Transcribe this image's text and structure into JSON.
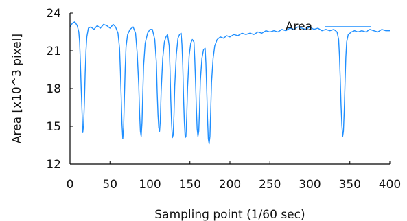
{
  "chart_data": {
    "type": "line",
    "title": "",
    "xlabel": "Sampling point (1/60 sec)",
    "ylabel": "Area [x10^3 pixel]",
    "xlim": [
      0,
      400
    ],
    "ylim": [
      12,
      24
    ],
    "x_ticks": [
      0,
      50,
      100,
      150,
      200,
      250,
      300,
      350,
      400
    ],
    "y_ticks": [
      12,
      15,
      18,
      21,
      24
    ],
    "grid": false,
    "legend": {
      "placement": "top-right"
    },
    "series": [
      {
        "name": "Area",
        "color": "#1f8fff",
        "points": [
          [
            0,
            22.9
          ],
          [
            3,
            23.2
          ],
          [
            6,
            23.3
          ],
          [
            9,
            23.0
          ],
          [
            11,
            22.5
          ],
          [
            12,
            21.7
          ],
          [
            13,
            20.1
          ],
          [
            14,
            18.0
          ],
          [
            15,
            16.2
          ],
          [
            16,
            14.5
          ],
          [
            17,
            15.1
          ],
          [
            18,
            16.9
          ],
          [
            19,
            19.2
          ],
          [
            20,
            21.0
          ],
          [
            21,
            22.1
          ],
          [
            23,
            22.8
          ],
          [
            26,
            22.9
          ],
          [
            30,
            22.7
          ],
          [
            34,
            23.0
          ],
          [
            38,
            22.8
          ],
          [
            42,
            23.1
          ],
          [
            46,
            23.0
          ],
          [
            50,
            22.8
          ],
          [
            54,
            23.1
          ],
          [
            57,
            22.9
          ],
          [
            60,
            22.4
          ],
          [
            62,
            21.2
          ],
          [
            63,
            19.4
          ],
          [
            64,
            17.3
          ],
          [
            65,
            15.2
          ],
          [
            66,
            14.0
          ],
          [
            67,
            14.9
          ],
          [
            68,
            17.2
          ],
          [
            69,
            19.6
          ],
          [
            70,
            21.3
          ],
          [
            72,
            22.3
          ],
          [
            75,
            22.7
          ],
          [
            79,
            22.9
          ],
          [
            82,
            22.4
          ],
          [
            84,
            20.8
          ],
          [
            86,
            18.2
          ],
          [
            87,
            16.0
          ],
          [
            88,
            14.6
          ],
          [
            89,
            14.2
          ],
          [
            90,
            15.3
          ],
          [
            91,
            17.5
          ],
          [
            92,
            19.8
          ],
          [
            94,
            21.6
          ],
          [
            97,
            22.4
          ],
          [
            100,
            22.7
          ],
          [
            103,
            22.7
          ],
          [
            106,
            21.9
          ],
          [
            108,
            20.1
          ],
          [
            109,
            17.7
          ],
          [
            110,
            15.9
          ],
          [
            111,
            14.9
          ],
          [
            112,
            14.6
          ],
          [
            113,
            15.5
          ],
          [
            114,
            17.8
          ],
          [
            116,
            20.4
          ],
          [
            118,
            21.7
          ],
          [
            120,
            22.1
          ],
          [
            122,
            22.3
          ],
          [
            124,
            21.4
          ],
          [
            125,
            19.7
          ],
          [
            126,
            17.1
          ],
          [
            127,
            15.2
          ],
          [
            128,
            14.1
          ],
          [
            129,
            14.3
          ],
          [
            130,
            15.9
          ],
          [
            131,
            18.2
          ],
          [
            133,
            20.7
          ],
          [
            135,
            22.0
          ],
          [
            137,
            22.3
          ],
          [
            139,
            22.4
          ],
          [
            140,
            21.5
          ],
          [
            141,
            19.8
          ],
          [
            142,
            17.3
          ],
          [
            143,
            15.3
          ],
          [
            144,
            14.1
          ],
          [
            145,
            14.2
          ],
          [
            146,
            15.8
          ],
          [
            147,
            18.1
          ],
          [
            149,
            20.6
          ],
          [
            151,
            21.6
          ],
          [
            153,
            21.9
          ],
          [
            155,
            21.7
          ],
          [
            156,
            20.4
          ],
          [
            157,
            18.5
          ],
          [
            158,
            16.4
          ],
          [
            159,
            14.8
          ],
          [
            160,
            14.2
          ],
          [
            161,
            14.6
          ],
          [
            162,
            16.3
          ],
          [
            163,
            18.6
          ],
          [
            165,
            20.4
          ],
          [
            167,
            21.1
          ],
          [
            169,
            21.2
          ],
          [
            170,
            20.0
          ],
          [
            171,
            17.9
          ],
          [
            172,
            15.6
          ],
          [
            173,
            14.0
          ],
          [
            174,
            13.6
          ],
          [
            175,
            14.2
          ],
          [
            176,
            16.2
          ],
          [
            177,
            18.5
          ],
          [
            179,
            20.4
          ],
          [
            181,
            21.4
          ],
          [
            184,
            21.9
          ],
          [
            188,
            22.1
          ],
          [
            192,
            22.0
          ],
          [
            196,
            22.2
          ],
          [
            200,
            22.1
          ],
          [
            205,
            22.3
          ],
          [
            210,
            22.2
          ],
          [
            215,
            22.4
          ],
          [
            220,
            22.3
          ],
          [
            225,
            22.4
          ],
          [
            230,
            22.3
          ],
          [
            235,
            22.5
          ],
          [
            240,
            22.4
          ],
          [
            245,
            22.6
          ],
          [
            250,
            22.5
          ],
          [
            255,
            22.6
          ],
          [
            260,
            22.5
          ],
          [
            265,
            22.7
          ],
          [
            270,
            22.6
          ],
          [
            275,
            22.8
          ],
          [
            280,
            22.7
          ],
          [
            285,
            22.9
          ],
          [
            290,
            22.8
          ],
          [
            295,
            22.7
          ],
          [
            300,
            22.9
          ],
          [
            305,
            22.7
          ],
          [
            310,
            22.8
          ],
          [
            315,
            22.6
          ],
          [
            320,
            22.7
          ],
          [
            325,
            22.6
          ],
          [
            330,
            22.7
          ],
          [
            334,
            22.5
          ],
          [
            336,
            21.9
          ],
          [
            337,
            20.6
          ],
          [
            338,
            18.7
          ],
          [
            339,
            16.7
          ],
          [
            340,
            15.1
          ],
          [
            341,
            14.2
          ],
          [
            342,
            14.6
          ],
          [
            343,
            16.3
          ],
          [
            344,
            18.6
          ],
          [
            345,
            20.5
          ],
          [
            346,
            21.7
          ],
          [
            348,
            22.3
          ],
          [
            352,
            22.5
          ],
          [
            356,
            22.6
          ],
          [
            360,
            22.5
          ],
          [
            365,
            22.6
          ],
          [
            370,
            22.5
          ],
          [
            375,
            22.7
          ],
          [
            380,
            22.6
          ],
          [
            385,
            22.5
          ],
          [
            390,
            22.7
          ],
          [
            395,
            22.6
          ],
          [
            400,
            22.6
          ]
        ]
      }
    ]
  }
}
